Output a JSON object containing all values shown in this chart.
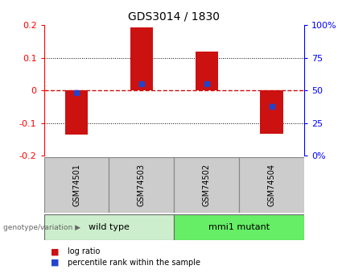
{
  "title": "GDS3014 / 1830",
  "samples": [
    "GSM74501",
    "GSM74503",
    "GSM74502",
    "GSM74504"
  ],
  "log_ratios": [
    -0.135,
    0.193,
    0.118,
    -0.132
  ],
  "percentile_ranks_pct": [
    48,
    55,
    55,
    38
  ],
  "ylim": [
    -0.2,
    0.2
  ],
  "y2lim": [
    0,
    100
  ],
  "yticks": [
    -0.2,
    -0.1,
    0.0,
    0.1,
    0.2
  ],
  "ytick_labels": [
    "-0.2",
    "-0.1",
    "0",
    "0.1",
    "0.2"
  ],
  "y2ticks": [
    0,
    25,
    50,
    75,
    100
  ],
  "y2tick_labels": [
    "0%",
    "25",
    "50",
    "75",
    "100%"
  ],
  "bar_color": "#cc1111",
  "dot_color": "#2244cc",
  "zero_line_color": "#cc1111",
  "background_color": "#ffffff",
  "legend_bar_label": "log ratio",
  "legend_dot_label": "percentile rank within the sample",
  "genotype_label": "genotype/variation",
  "wild_type_label": "wild type",
  "mmi1_label": "mmi1 mutant",
  "wild_type_color": "#cceecc",
  "mmi1_color": "#66ee66",
  "sample_label_bg": "#cccccc",
  "bar_width": 0.35
}
